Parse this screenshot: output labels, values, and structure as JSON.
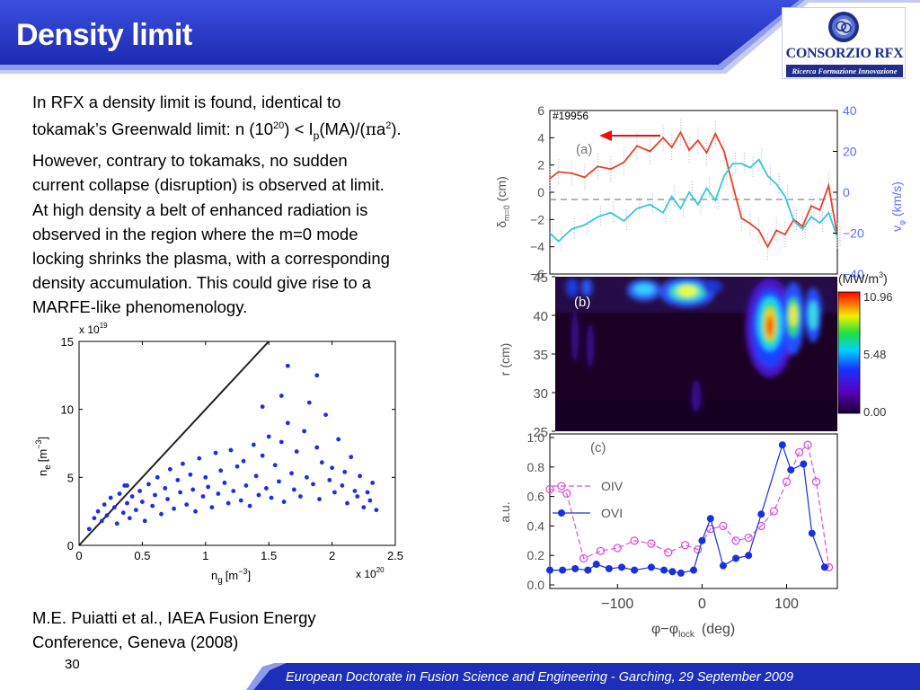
{
  "slide": {
    "title": "Density limit",
    "page_number": "30",
    "footer": "European Doctorate in Fusion Science and Engineering  -  Garching, 29 September 2009",
    "colors": {
      "header_blue": "#2435c8",
      "footer_blue": "#1d2fb8",
      "accent": "#7d8ae8"
    }
  },
  "logo": {
    "name": "CONSORZIO RFX",
    "tagline": "Ricerca Formazione Innovazione"
  },
  "intro": {
    "line1": "In RFX a density limit is found, identical to",
    "line2_a": "tokamak’s Greenwald limit: n (10",
    "line2_sup1": "20",
    "line2_b": ") < I",
    "line2_sub": "p",
    "line2_c": "(MA)/(",
    "line2_pi": "π",
    "line2_d": "a",
    "line2_sup2": "2",
    "line2_e": ").",
    "line3": "However, contrary to tokamaks, no sudden",
    "line4": "current collapse (disruption) is observed at limit.",
    "line5": "At high density a belt of enhanced radiation is",
    "line6": "observed in the region where the m=0 mode",
    "line7": "locking shrinks the plasma, with a corresponding",
    "line8": "density accumulation. This could give rise to a",
    "line9": "MARFE-like phenomenology."
  },
  "reference": {
    "line1": "M.E. Puiatti et al., IAEA Fusion Energy",
    "line2": "Conference, Geneva (2008)"
  },
  "chart_data": [
    {
      "type": "scatter",
      "xlabel": "n",
      "xlabel_sub": "g",
      "xlabel_unit": "[m",
      "xlabel_exp": "−3",
      "xlabel_close": "]",
      "ylabel": "n",
      "ylabel_sub": "e",
      "ylabel_unit": "[m",
      "ylabel_exp": "−3",
      "ylabel_close": "]",
      "x_multiplier": "x 10",
      "x_multiplier_exp": "20",
      "y_multiplier": "x 10",
      "y_multiplier_exp": "19",
      "xlim": [
        0,
        2.5
      ],
      "ylim": [
        0,
        15
      ],
      "xticks": [
        0,
        0.5,
        1,
        1.5,
        2,
        2.5
      ],
      "xtick_labels": [
        "0",
        "0.5",
        "1",
        "1.5",
        "2",
        "2.5"
      ],
      "yticks": [
        0,
        5,
        10,
        15
      ],
      "ytick_labels": [
        "0",
        "5",
        "10",
        "15"
      ],
      "limit_line": {
        "x": [
          0,
          1.5
        ],
        "y": [
          0,
          15
        ]
      },
      "series": [
        {
          "points": [
            [
              0.08,
              1.2
            ],
            [
              0.12,
              2.0
            ],
            [
              0.15,
              2.5
            ],
            [
              0.18,
              1.8
            ],
            [
              0.2,
              3.0
            ],
            [
              0.22,
              2.2
            ],
            [
              0.25,
              3.5
            ],
            [
              0.28,
              2.8
            ],
            [
              0.3,
              1.6
            ],
            [
              0.32,
              3.8
            ],
            [
              0.35,
              2.4
            ],
            [
              0.36,
              4.4
            ],
            [
              0.38,
              3.1
            ],
            [
              0.4,
              2.0
            ],
            [
              0.42,
              3.6
            ],
            [
              0.45,
              2.6
            ],
            [
              0.48,
              4.0
            ],
            [
              0.5,
              3.2
            ],
            [
              0.52,
              1.8
            ],
            [
              0.55,
              4.5
            ],
            [
              0.58,
              2.9
            ],
            [
              0.6,
              3.7
            ],
            [
              0.62,
              5.0
            ],
            [
              0.65,
              2.3
            ],
            [
              0.68,
              4.2
            ],
            [
              0.7,
              3.4
            ],
            [
              0.72,
              5.6
            ],
            [
              0.75,
              2.7
            ],
            [
              0.78,
              4.8
            ],
            [
              0.8,
              3.9
            ],
            [
              0.82,
              6.0
            ],
            [
              0.85,
              3.0
            ],
            [
              0.88,
              5.2
            ],
            [
              0.9,
              4.1
            ],
            [
              0.92,
              2.5
            ],
            [
              0.95,
              6.4
            ],
            [
              0.98,
              3.6
            ],
            [
              1.0,
              5.0
            ],
            [
              1.02,
              4.3
            ],
            [
              1.05,
              2.8
            ],
            [
              1.08,
              6.8
            ],
            [
              1.1,
              3.8
            ],
            [
              1.12,
              5.5
            ],
            [
              1.15,
              4.6
            ],
            [
              1.18,
              3.1
            ],
            [
              1.2,
              7.0
            ],
            [
              1.22,
              4.0
            ],
            [
              1.25,
              5.8
            ],
            [
              1.28,
              3.3
            ],
            [
              1.3,
              6.2
            ],
            [
              1.32,
              4.4
            ],
            [
              1.35,
              2.9
            ],
            [
              1.38,
              7.4
            ],
            [
              1.4,
              5.1
            ],
            [
              1.42,
              3.7
            ],
            [
              1.45,
              6.6
            ],
            [
              1.48,
              4.2
            ],
            [
              1.5,
              8.0
            ],
            [
              1.52,
              3.5
            ],
            [
              1.55,
              5.9
            ],
            [
              1.58,
              4.7
            ],
            [
              1.6,
              7.6
            ],
            [
              1.62,
              3.2
            ],
            [
              1.65,
              9.0
            ],
            [
              1.68,
              5.3
            ],
            [
              1.7,
              4.1
            ],
            [
              1.72,
              6.9
            ],
            [
              1.75,
              3.6
            ],
            [
              1.78,
              8.4
            ],
            [
              1.8,
              5.0
            ],
            [
              1.82,
              10.5
            ],
            [
              1.85,
              4.5
            ],
            [
              1.88,
              7.2
            ],
            [
              1.9,
              3.4
            ],
            [
              1.92,
              6.1
            ],
            [
              1.95,
              9.6
            ],
            [
              1.98,
              4.8
            ],
            [
              2.0,
              5.7
            ],
            [
              2.02,
              3.9
            ],
            [
              2.05,
              7.8
            ],
            [
              2.08,
              4.4
            ],
            [
              2.1,
              5.4
            ],
            [
              2.12,
              3.1
            ],
            [
              2.15,
              6.5
            ],
            [
              2.18,
              4.0
            ],
            [
              2.2,
              3.6
            ],
            [
              2.22,
              5.1
            ],
            [
              2.25,
              2.8
            ],
            [
              2.28,
              3.9
            ],
            [
              2.3,
              3.3
            ],
            [
              2.32,
              4.6
            ],
            [
              2.35,
              2.6
            ],
            [
              1.65,
              13.2
            ],
            [
              1.6,
              11.0
            ],
            [
              1.88,
              12.5
            ],
            [
              1.45,
              10.2
            ],
            [
              0.38,
              4.4
            ]
          ]
        }
      ]
    },
    {
      "type": "line",
      "shot": "#19956",
      "panel": "(a)",
      "x_range": [
        -180,
        150
      ],
      "ylabel_left": "δ",
      "ylabel_left_sub": "m=0",
      "ylabel_left_unit": "(cm)",
      "ylabel_right": "v",
      "ylabel_right_sub": "φ",
      "ylabel_right_unit": "(km/s)",
      "ylim_left": [
        -6,
        6
      ],
      "ylim_right": [
        -40,
        40
      ],
      "yticks_left": [
        -6,
        -4,
        -2,
        0,
        2,
        4,
        6
      ],
      "yticks_left_labels": [
        "−6",
        "−4",
        "−2",
        "0",
        "2",
        "4",
        "6"
      ],
      "yticks_right": [
        -40,
        -20,
        0,
        20,
        40
      ],
      "yticks_right_labels": [
        "−40",
        "−20",
        "0",
        "20",
        "40"
      ],
      "series": [
        {
          "name": "δ m=0",
          "color": "#e8402a",
          "x": [
            -180,
            -170,
            -155,
            -140,
            -125,
            -110,
            -95,
            -80,
            -65,
            -50,
            -40,
            -30,
            -20,
            -10,
            0,
            10,
            20,
            30,
            40,
            50,
            60,
            70,
            80,
            90,
            100,
            110,
            120,
            130,
            140,
            150
          ],
          "y": [
            1.0,
            1.5,
            1.4,
            1.1,
            1.9,
            1.7,
            2.2,
            3.4,
            3.0,
            4.0,
            3.3,
            4.4,
            3.1,
            3.8,
            2.9,
            4.3,
            3.0,
            0.5,
            -1.9,
            -2.3,
            -2.8,
            -4.0,
            -2.8,
            -3.1,
            -2.0,
            -2.5,
            -1.0,
            -1.3,
            0.5,
            -3.2
          ]
        },
        {
          "name": "v φ",
          "color": "#34c8d8",
          "x": [
            -180,
            -170,
            -155,
            -140,
            -125,
            -110,
            -95,
            -80,
            -65,
            -50,
            -40,
            -30,
            -20,
            -10,
            0,
            10,
            20,
            30,
            40,
            50,
            60,
            70,
            80,
            90,
            100,
            110,
            120,
            130,
            140,
            150
          ],
          "y": [
            -20,
            -24,
            -18,
            -16,
            -12,
            -10,
            -14,
            -8,
            -6,
            -10,
            -2,
            -8,
            0,
            -6,
            2,
            -4,
            8,
            14,
            14,
            12,
            16,
            8,
            4,
            -2,
            -14,
            -18,
            -12,
            -15,
            -10,
            -22
          ]
        }
      ],
      "arrow": "pointing left"
    },
    {
      "type": "heatmap",
      "panel": "(b)",
      "ylabel": "r",
      "ylabel_unit": "(cm)",
      "yticks": [
        25,
        30,
        35,
        40,
        45
      ],
      "yticks_labels": [
        "25",
        "30",
        "35",
        "40",
        "45"
      ],
      "colorbar_unit": "(MW/m",
      "colorbar_unit_exp": "3",
      "colorbar_unit_close": ")",
      "colorbar_ticks": [
        "10.96",
        "5.48",
        "0.00"
      ],
      "colorbar_range": [
        0,
        10.96
      ]
    },
    {
      "type": "line",
      "panel": "(c)",
      "xlabel": "φ−φ",
      "xlabel_sub": "lock",
      "xlabel_unit": "(deg)",
      "ylabel": "a.u.",
      "xlim": [
        -180,
        160
      ],
      "ylim": [
        0,
        1.0
      ],
      "xticks": [
        -100,
        0,
        100
      ],
      "xtick_labels": [
        "−100",
        "0",
        "100"
      ],
      "yticks": [
        0,
        0.2,
        0.4,
        0.6,
        0.8,
        1.0
      ],
      "ytick_labels": [
        "0.0",
        "0.2",
        "0.4",
        "0.6",
        "0.8",
        "1.0"
      ],
      "series": [
        {
          "name": "OIV",
          "color": "#e050d8",
          "x": [
            -180,
            -160,
            -140,
            -120,
            -100,
            -80,
            -60,
            -40,
            -20,
            -5,
            10,
            25,
            40,
            55,
            70,
            85,
            100,
            115,
            125,
            135,
            150
          ],
          "y": [
            0.65,
            0.62,
            0.18,
            0.23,
            0.25,
            0.3,
            0.28,
            0.22,
            0.27,
            0.24,
            0.38,
            0.4,
            0.3,
            0.32,
            0.4,
            0.5,
            0.7,
            0.9,
            0.95,
            0.7,
            0.12
          ]
        },
        {
          "name": "OVI",
          "color": "#1830e0",
          "x": [
            -180,
            -165,
            -150,
            -135,
            -125,
            -110,
            -95,
            -80,
            -60,
            -45,
            -35,
            -25,
            -10,
            0,
            10,
            25,
            40,
            55,
            70,
            95,
            105,
            120,
            130,
            145
          ],
          "y": [
            0.1,
            0.1,
            0.11,
            0.1,
            0.14,
            0.11,
            0.12,
            0.1,
            0.12,
            0.1,
            0.09,
            0.08,
            0.1,
            0.3,
            0.45,
            0.13,
            0.18,
            0.2,
            0.48,
            0.95,
            0.78,
            0.82,
            0.35,
            0.12
          ]
        }
      ]
    }
  ]
}
